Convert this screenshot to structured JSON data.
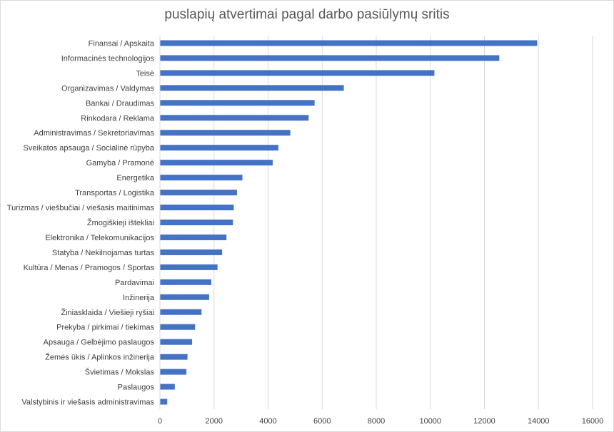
{
  "chart_data": {
    "type": "bar",
    "orientation": "horizontal",
    "title": "puslapių atvertimai pagal darbo pasiūlymų sritis",
    "xlabel": "",
    "ylabel": "",
    "xlim": [
      0,
      16000
    ],
    "x_ticks": [
      0,
      2000,
      4000,
      6000,
      8000,
      10000,
      12000,
      14000,
      16000
    ],
    "grid": "vertical",
    "legend": "none",
    "bar_color": "#4472c4",
    "categories": [
      "Finansai / Apskaita",
      "Informacinės technologijos",
      "Teisė",
      "Organizavimas / Valdymas",
      "Bankai / Draudimas",
      "Rinkodara / Reklama",
      "Administravimas / Sekretoriavimas",
      "Sveikatos apsauga / Socialinė rūpyba",
      "Gamyba / Pramonė",
      "Energetika",
      "Transportas / Logistika",
      "Turizmas / viešbučiai / viešasis maitinimas",
      "Žmogiškieji ištekliai",
      "Elektronika / Telekomunikacijos",
      "Statyba / Nekilnojamas turtas",
      "Kultūra / Menas / Pramogos / Sportas",
      "Pardavimai",
      "Inžinerija",
      "Žiniasklaida / Viešieji ryšiai",
      "Prekyba / pirkimai / tiekimas",
      "Apsauga / Gelbėjimo paslaugos",
      "Žemės ūkis / Aplinkos inžinerija",
      "Švietimas / Mokslas",
      "Paslaugos",
      "Valstybinis ir viešasis administravimas"
    ],
    "values": [
      13950,
      12550,
      10150,
      6800,
      5720,
      5500,
      4820,
      4380,
      4170,
      3050,
      2850,
      2730,
      2700,
      2460,
      2300,
      2130,
      1900,
      1820,
      1540,
      1300,
      1190,
      1020,
      980,
      550,
      270
    ]
  }
}
